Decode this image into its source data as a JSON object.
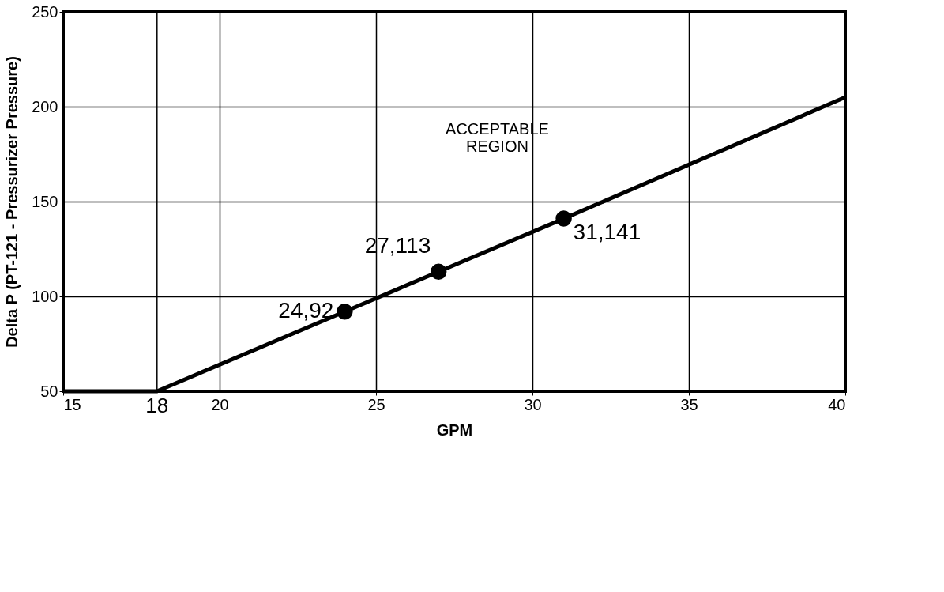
{
  "chart_data": {
    "type": "line",
    "xlabel": "GPM",
    "ylabel": "Delta P (PT-121 - Pressurizer Pressure)",
    "xlim": [
      15,
      40
    ],
    "ylim": [
      50,
      250
    ],
    "xticks": [
      15,
      20,
      25,
      30,
      35,
      40
    ],
    "yticks": [
      50,
      100,
      150,
      200,
      250
    ],
    "grid": true,
    "series": [
      {
        "color": "#000000",
        "marker": "none",
        "line_style": "solid",
        "x": [
          15,
          18,
          24,
          27,
          31,
          40
        ],
        "values": [
          50,
          50,
          92,
          113,
          141,
          205
        ]
      },
      {
        "type": "scatter",
        "color": "#000000",
        "marker": "circle",
        "x": [
          24,
          27,
          31
        ],
        "values": [
          92,
          113,
          141
        ]
      }
    ],
    "ref_lines": [
      {
        "axis": "x",
        "value": 18,
        "label": "18",
        "color": "#000000",
        "line_style": "solid"
      }
    ],
    "annotations": [
      "ACCEPTABLE\nREGION",
      {
        "text": "24,92",
        "x": 24,
        "y": 92
      },
      {
        "text": "27,113",
        "x": 27,
        "y": 113
      },
      {
        "text": "31,141",
        "x": 31,
        "y": 141
      }
    ]
  }
}
